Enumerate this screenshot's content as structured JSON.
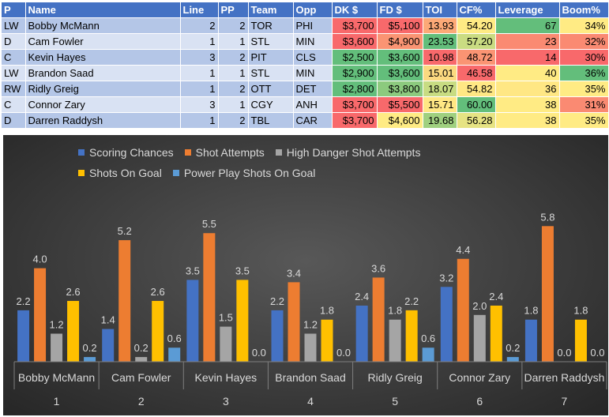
{
  "table": {
    "headers": [
      "P",
      "Name",
      "Line",
      "PP",
      "Team",
      "Opp",
      "DK $",
      "FD $",
      "TOI",
      "CF%",
      "Leverage",
      "Boom%"
    ],
    "rows": [
      [
        "LW",
        "Bobby McMann",
        "2",
        "2",
        "TOR",
        "PHI",
        "$3,700",
        "$5,100",
        "13.93",
        "54.20",
        "67",
        "34%"
      ],
      [
        "D",
        "Cam Fowler",
        "1",
        "1",
        "STL",
        "MIN",
        "$3,600",
        "$4,900",
        "23.53",
        "57.20",
        "23",
        "32%"
      ],
      [
        "C",
        "Kevin Hayes",
        "3",
        "2",
        "PIT",
        "CLS",
        "$2,500",
        "$3,600",
        "10.98",
        "48.72",
        "14",
        "30%"
      ],
      [
        "LW",
        "Brandon Saad",
        "1",
        "1",
        "STL",
        "MIN",
        "$2,900",
        "$3,600",
        "15.01",
        "46.58",
        "40",
        "36%"
      ],
      [
        "RW",
        "Ridly Greig",
        "1",
        "2",
        "OTT",
        "DET",
        "$2,800",
        "$3,800",
        "18.07",
        "54.82",
        "36",
        "35%"
      ],
      [
        "C",
        "Connor Zary",
        "3",
        "1",
        "CGY",
        "ANH",
        "$3,700",
        "$5,500",
        "15.71",
        "60.00",
        "38",
        "31%"
      ],
      [
        "D",
        "Darren Raddysh",
        "1",
        "2",
        "TBL",
        "CAR",
        "$3,700",
        "$4,600",
        "19.68",
        "56.28",
        "38",
        "35%"
      ]
    ],
    "cell_colors": {
      "DK $": [
        "#f8696b",
        "#f8696b",
        "#63be7b",
        "#63be7b",
        "#63be7b",
        "#f8696b",
        "#f8696b"
      ],
      "FD $": [
        "#f8696b",
        "#fa9473",
        "#63be7b",
        "#63be7b",
        "#8cca7e",
        "#f8696b",
        "#ffeb84"
      ],
      "TOI": [
        "#fca977",
        "#63be7b",
        "#f8696b",
        "#fbd980",
        "#c8dc82",
        "#ffe784",
        "#9fd07f"
      ],
      "CF%": [
        "#ffeb84",
        "#cadc82",
        "#fa9473",
        "#f8696b",
        "#ffe784",
        "#63be7b",
        "#e6e383"
      ],
      "Leverage": [
        "#63be7b",
        "#fa8a72",
        "#f8696b",
        "#ffeb84",
        "#ffe784",
        "#ffeb84",
        "#ffeb84"
      ],
      "Boom%": [
        "#ffeb84",
        "#fa8a72",
        "#f8696b",
        "#63be7b",
        "#ffeb84",
        "#fa8a72",
        "#ffeb84"
      ]
    }
  },
  "chart_data": {
    "type": "bar",
    "title": "",
    "xlabel": "",
    "ylabel": "",
    "ylim": [
      0,
      6.5
    ],
    "grid": false,
    "legend_position": "top-center",
    "categories": [
      "Bobby McMann",
      "Cam Fowler",
      "Kevin Hayes",
      "Brandon Saad",
      "Ridly Greig",
      "Connor Zary",
      "Darren Raddysh"
    ],
    "category_numbers": [
      "1",
      "2",
      "3",
      "4",
      "5",
      "6",
      "7"
    ],
    "series": [
      {
        "name": "Scoring Chances",
        "color": "#4472c4",
        "values": [
          2.2,
          1.4,
          3.5,
          2.2,
          2.4,
          3.2,
          1.8
        ]
      },
      {
        "name": "Shot Attempts",
        "color": "#ed7d31",
        "values": [
          4.0,
          5.2,
          5.5,
          3.4,
          3.6,
          4.4,
          5.8
        ]
      },
      {
        "name": "High Danger Shot Attempts",
        "color": "#a5a5a5",
        "values": [
          1.2,
          0.2,
          1.5,
          1.2,
          1.8,
          2.0,
          0.0
        ]
      },
      {
        "name": "Shots On Goal",
        "color": "#ffc000",
        "values": [
          2.6,
          2.6,
          3.5,
          1.8,
          2.2,
          2.4,
          1.8
        ]
      },
      {
        "name": "Power Play Shots On Goal",
        "color": "#5b9bd5",
        "values": [
          0.2,
          0.6,
          0.0,
          0.0,
          0.6,
          0.2,
          0.0
        ]
      }
    ],
    "legend_rows": [
      [
        "Scoring Chances",
        "Shot Attempts",
        "High Danger Shot Attempts"
      ],
      [
        "Shots On Goal",
        "Power Play Shots On Goal"
      ]
    ]
  }
}
